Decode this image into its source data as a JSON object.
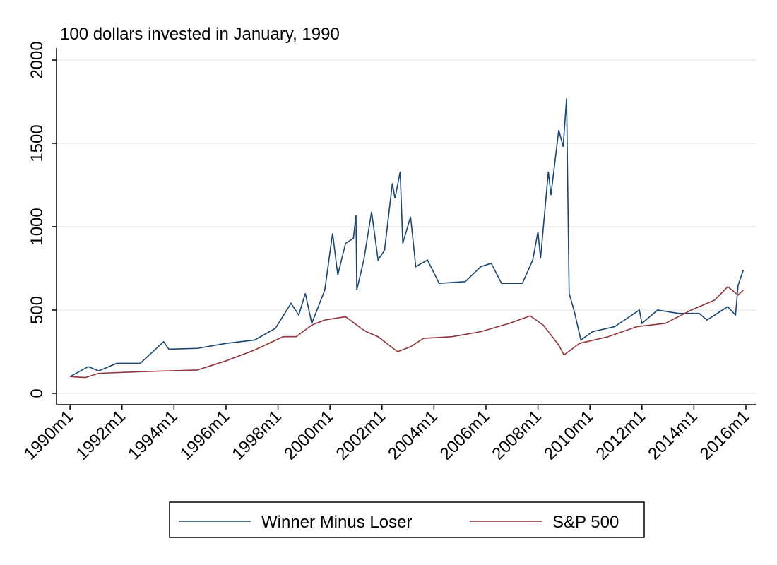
{
  "chart_data": {
    "type": "line",
    "title": "100 dollars invested in January, 1990",
    "xlim": [
      1989.48,
      2016.38
    ],
    "ylim": [
      -68,
      2072
    ],
    "xticks": [
      {
        "value": 1990,
        "label": "1990m1"
      },
      {
        "value": 1992,
        "label": "1992m1"
      },
      {
        "value": 1994,
        "label": "1994m1"
      },
      {
        "value": 1996,
        "label": "1996m1"
      },
      {
        "value": 1998,
        "label": "1998m1"
      },
      {
        "value": 2000,
        "label": "2000m1"
      },
      {
        "value": 2002,
        "label": "2002m1"
      },
      {
        "value": 2004,
        "label": "2004m1"
      },
      {
        "value": 2006,
        "label": "2006m1"
      },
      {
        "value": 2008,
        "label": "2008m1"
      },
      {
        "value": 2010,
        "label": "2010m1"
      },
      {
        "value": 2012,
        "label": "2012m1"
      },
      {
        "value": 2014,
        "label": "2014m1"
      },
      {
        "value": 2016,
        "label": "2016m1"
      }
    ],
    "yticks": [
      0,
      500,
      1000,
      1500,
      2000
    ],
    "grid": true,
    "legend": "bottom",
    "series": [
      {
        "name": "Winner Minus Loser",
        "color": "#1a476f",
        "x": [
          1990.0,
          1990.7,
          1991.1,
          1991.8,
          1992.7,
          1993.6,
          1993.8,
          1994.9,
          1996.0,
          1997.1,
          1997.9,
          1998.5,
          1998.8,
          1999.05,
          1999.3,
          1999.8,
          2000.1,
          2000.3,
          2000.6,
          2000.9,
          2001.0,
          2001.03,
          2001.3,
          2001.6,
          2001.85,
          2002.1,
          2002.4,
          2002.5,
          2002.7,
          2002.8,
          2003.1,
          2003.3,
          2003.75,
          2004.2,
          2005.2,
          2005.8,
          2006.2,
          2006.6,
          2007.4,
          2007.8,
          2008.0,
          2008.1,
          2008.4,
          2008.5,
          2008.8,
          2008.97,
          2009.1,
          2009.2,
          2009.4,
          2009.65,
          2010.1,
          2010.95,
          2011.9,
          2012.0,
          2012.6,
          2013.4,
          2014.2,
          2014.5,
          2015.3,
          2015.6,
          2015.7,
          2015.9
        ],
        "values": [
          100,
          160,
          135,
          180,
          180,
          310,
          265,
          270,
          300,
          320,
          390,
          540,
          470,
          600,
          420,
          620,
          960,
          710,
          900,
          930,
          1070,
          620,
          800,
          1090,
          800,
          860,
          1260,
          1170,
          1330,
          900,
          1060,
          760,
          800,
          660,
          670,
          760,
          780,
          660,
          660,
          800,
          970,
          810,
          1330,
          1190,
          1580,
          1480,
          1770,
          600,
          490,
          320,
          370,
          400,
          500,
          420,
          500,
          480,
          480,
          440,
          520,
          470,
          650,
          740
        ]
      },
      {
        "name": "S&P 500",
        "color": "#90353b",
        "x": [
          1990.0,
          1990.6,
          1991.1,
          1992.7,
          1994.9,
          1996.0,
          1997.1,
          1998.2,
          1998.7,
          1999.3,
          1999.8,
          2000.6,
          2001.2,
          2001.4,
          2001.85,
          2002.6,
          2003.1,
          2003.6,
          2004.7,
          2005.8,
          2006.9,
          2007.7,
          2008.2,
          2008.8,
          2009.0,
          2009.6,
          2010.7,
          2011.8,
          2012.9,
          2013.9,
          2014.8,
          2015.3,
          2015.7,
          2015.9
        ],
        "values": [
          100,
          95,
          120,
          130,
          140,
          195,
          260,
          340,
          340,
          410,
          440,
          460,
          390,
          370,
          340,
          250,
          280,
          330,
          340,
          370,
          420,
          465,
          410,
          290,
          230,
          300,
          340,
          400,
          420,
          500,
          560,
          640,
          590,
          620
        ]
      }
    ]
  }
}
